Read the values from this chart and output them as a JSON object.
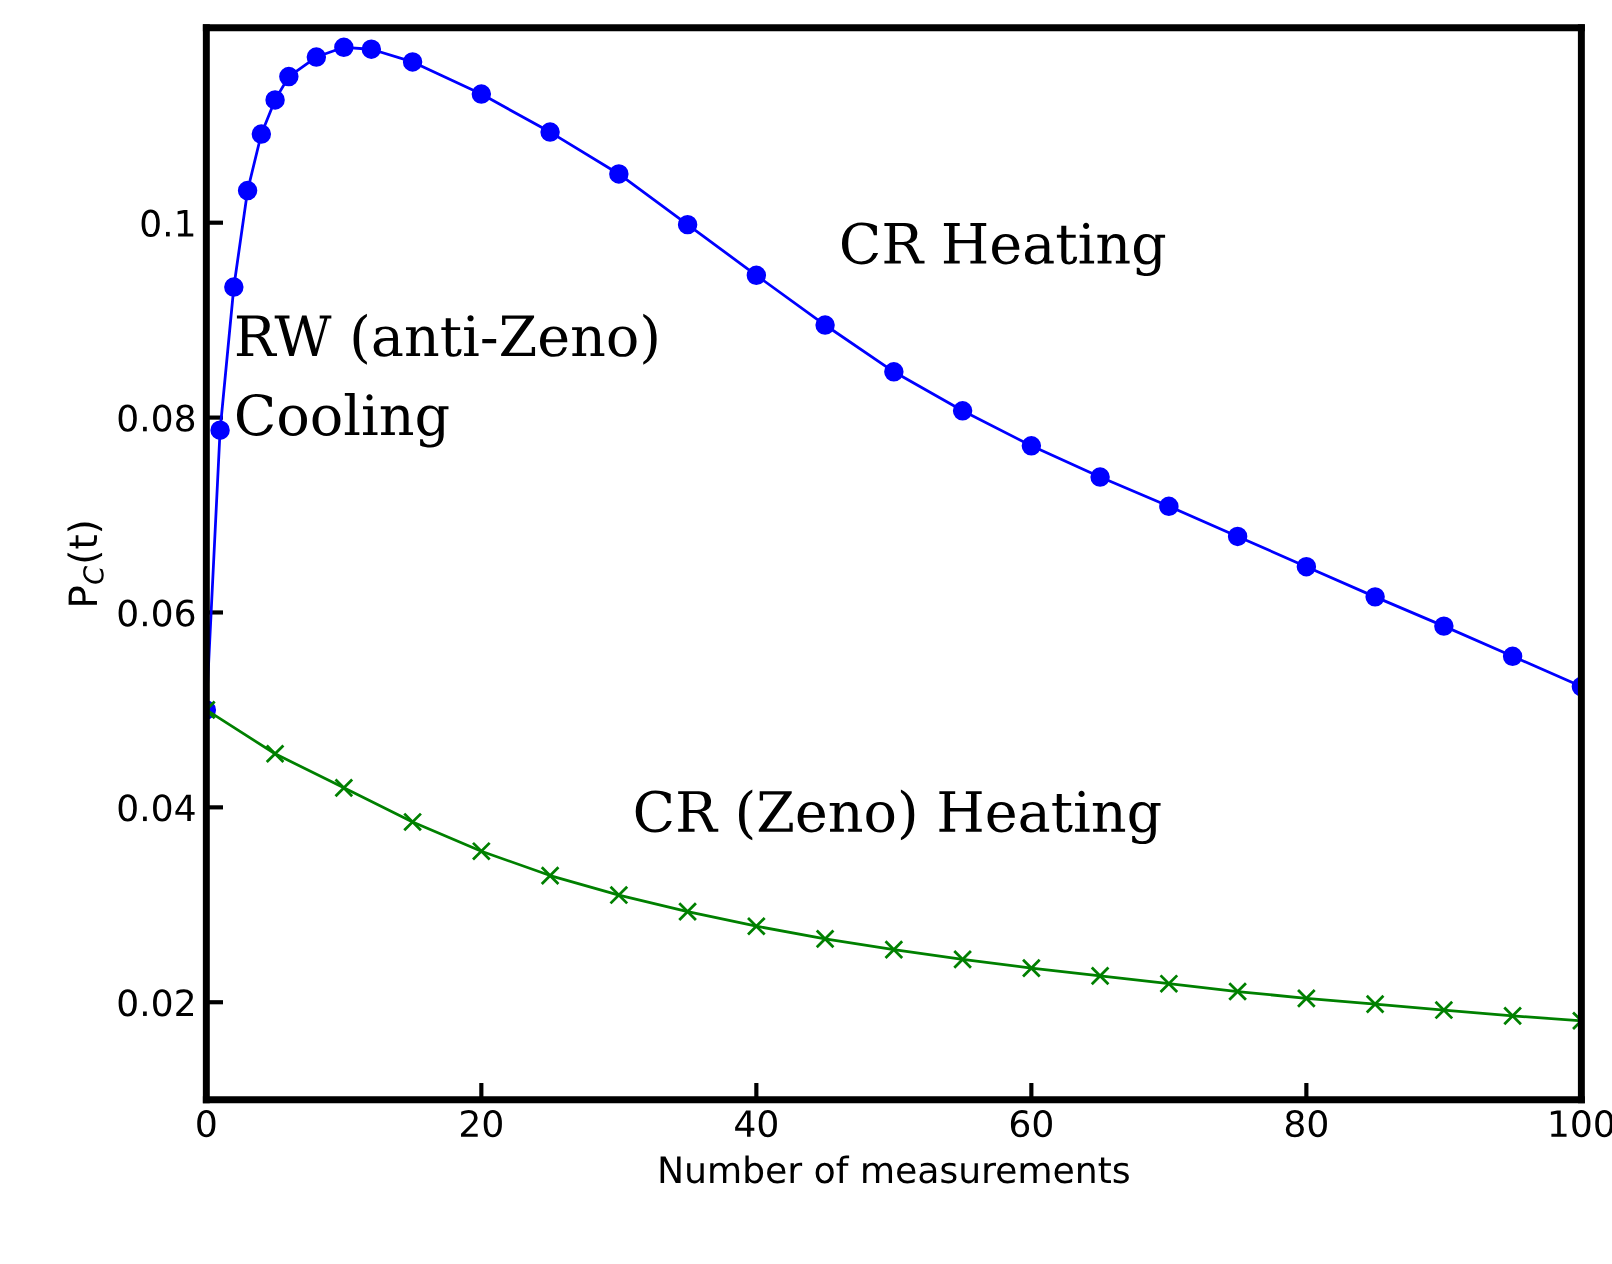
{
  "chart_data": {
    "type": "line",
    "xlabel": "Number of measurements",
    "ylabel": "P$_{C}$(t)",
    "xlim": [
      0,
      100
    ],
    "ylim": [
      0.01,
      0.12
    ],
    "xticks": [
      0,
      20,
      40,
      60,
      80,
      100
    ],
    "yticks": [
      0.02,
      0.04,
      0.06,
      0.08,
      0.1
    ],
    "grid": false,
    "legend": false,
    "series": [
      {
        "color": "#0000ff",
        "marker": "circle",
        "x": [
          0,
          1,
          2,
          3,
          4,
          5,
          6,
          8,
          10,
          12,
          15,
          20,
          25,
          30,
          35,
          40,
          45,
          50,
          55,
          60,
          65,
          70,
          75,
          80,
          85,
          90,
          95,
          100
        ],
        "values": [
          0.05,
          0.0787,
          0.0934,
          0.1033,
          0.1091,
          0.1126,
          0.115,
          0.117,
          0.118,
          0.1178,
          0.1165,
          0.1132,
          0.1093,
          0.105,
          0.0998,
          0.0946,
          0.0895,
          0.0847,
          0.0807,
          0.0771,
          0.0739,
          0.0709,
          0.0678,
          0.0647,
          0.0616,
          0.0586,
          0.0555,
          0.0524
        ]
      },
      {
        "color": "#008000",
        "marker": "cross",
        "x": [
          0,
          5,
          10,
          15,
          20,
          25,
          30,
          35,
          40,
          45,
          50,
          55,
          60,
          65,
          70,
          75,
          80,
          85,
          90,
          95,
          100
        ],
        "values": [
          0.05,
          0.0455,
          0.042,
          0.0385,
          0.0355,
          0.033,
          0.031,
          0.0293,
          0.0278,
          0.0265,
          0.0254,
          0.0244,
          0.0235,
          0.0227,
          0.0219,
          0.0211,
          0.0204,
          0.0198,
          0.0192,
          0.0186,
          0.0181
        ]
      }
    ],
    "annotations": [
      "RW (anti-Zeno)\nCooling",
      "CR Heating",
      "CR (Zeno) Heating"
    ]
  }
}
